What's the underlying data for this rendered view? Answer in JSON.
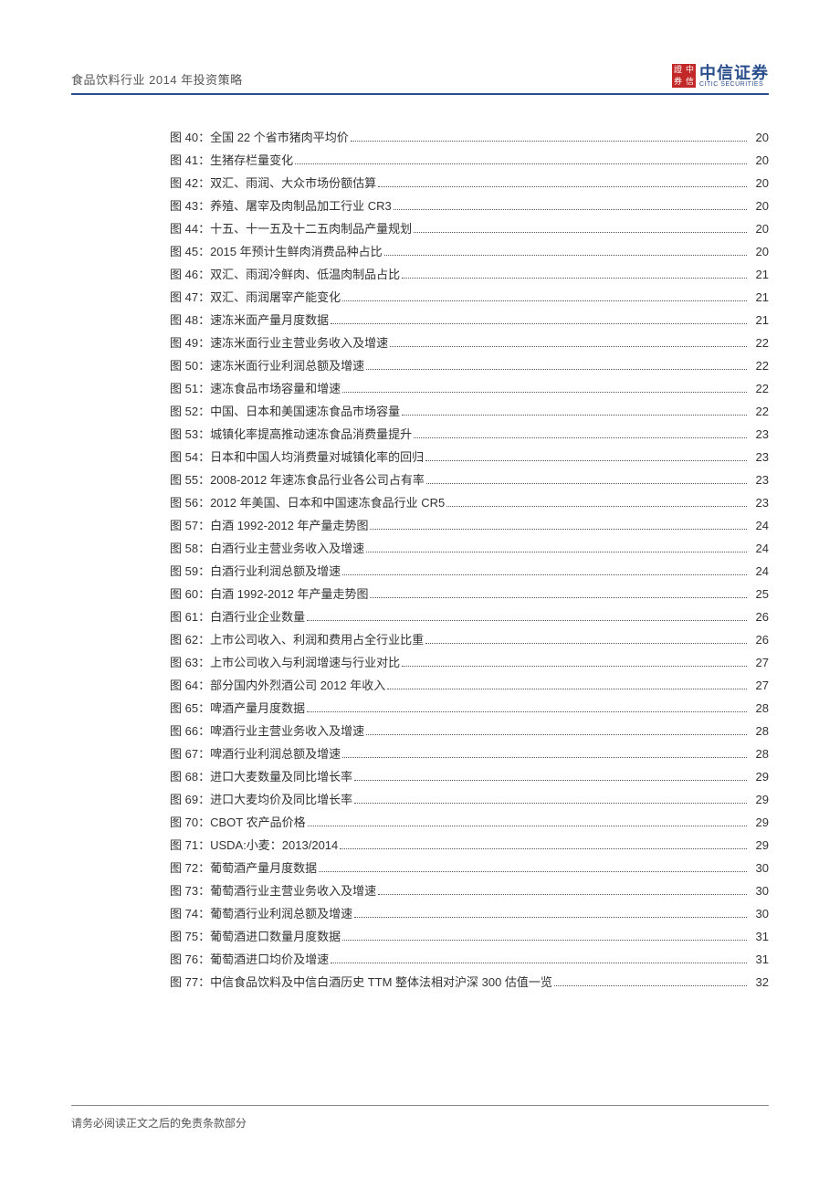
{
  "header": {
    "title": "食品饮料行业 2014 年投资策略",
    "logo": {
      "seal": [
        "證",
        "中",
        "券",
        "信"
      ],
      "cn": "中信证券",
      "en": "CITIC SECURITIES"
    }
  },
  "colors": {
    "accent": "#2a4e8c",
    "seal": "#c32828",
    "text": "#333333",
    "muted": "#555555"
  },
  "toc": [
    {
      "num": "图 40：",
      "title": "全国 22 个省市猪肉平均价",
      "page": "20"
    },
    {
      "num": "图 41：",
      "title": "生猪存栏量变化",
      "page": "20"
    },
    {
      "num": "图 42：",
      "title": "双汇、雨润、大众市场份额估算",
      "page": "20"
    },
    {
      "num": "图 43：",
      "title": "养殖、屠宰及肉制品加工行业 CR3",
      "page": "20"
    },
    {
      "num": "图 44：",
      "title": "十五、十一五及十二五肉制品产量规划",
      "page": "20"
    },
    {
      "num": "图 45：",
      "title": "2015 年预计生鲜肉消费品种占比",
      "page": "20"
    },
    {
      "num": "图 46：",
      "title": "双汇、雨润冷鲜肉、低温肉制品占比",
      "page": "21"
    },
    {
      "num": "图 47：",
      "title": "双汇、雨润屠宰产能变化",
      "page": "21"
    },
    {
      "num": "图 48：",
      "title": "速冻米面产量月度数据",
      "page": "21"
    },
    {
      "num": "图 49：",
      "title": "速冻米面行业主营业务收入及增速",
      "page": "22"
    },
    {
      "num": "图 50：",
      "title": "速冻米面行业利润总额及增速",
      "page": "22"
    },
    {
      "num": "图 51：",
      "title": "速冻食品市场容量和增速",
      "page": "22"
    },
    {
      "num": "图 52：",
      "title": "中国、日本和美国速冻食品市场容量",
      "page": "22"
    },
    {
      "num": "图 53：",
      "title": "城镇化率提高推动速冻食品消费量提升",
      "page": "23"
    },
    {
      "num": "图 54：",
      "title": "日本和中国人均消费量对城镇化率的回归",
      "page": "23"
    },
    {
      "num": "图 55：",
      "title": "2008-2012 年速冻食品行业各公司占有率",
      "page": "23"
    },
    {
      "num": "图 56：",
      "title": "2012 年美国、日本和中国速冻食品行业 CR5",
      "page": "23"
    },
    {
      "num": "图 57：",
      "title": "白酒 1992-2012 年产量走势图",
      "page": "24"
    },
    {
      "num": "图 58：",
      "title": "白酒行业主营业务收入及增速",
      "page": "24"
    },
    {
      "num": "图 59：",
      "title": "白酒行业利润总额及增速",
      "page": "24"
    },
    {
      "num": "图 60：",
      "title": "白酒 1992-2012 年产量走势图",
      "page": "25"
    },
    {
      "num": "图 61：",
      "title": "白酒行业企业数量",
      "page": "26"
    },
    {
      "num": "图 62：",
      "title": "上市公司收入、利润和费用占全行业比重",
      "page": "26"
    },
    {
      "num": "图 63：",
      "title": "上市公司收入与利润增速与行业对比",
      "page": "27"
    },
    {
      "num": "图 64：",
      "title": "部分国内外烈酒公司 2012 年收入",
      "page": "27"
    },
    {
      "num": "图 65：",
      "title": "啤酒产量月度数据",
      "page": "28"
    },
    {
      "num": "图 66：",
      "title": "啤酒行业主营业务收入及增速",
      "page": "28"
    },
    {
      "num": "图 67：",
      "title": "啤酒行业利润总额及增速",
      "page": "28"
    },
    {
      "num": "图 68：",
      "title": "进口大麦数量及同比增长率",
      "page": "29"
    },
    {
      "num": "图 69：",
      "title": "进口大麦均价及同比增长率",
      "page": "29"
    },
    {
      "num": "图 70：",
      "title": "CBOT 农产品价格",
      "page": "29"
    },
    {
      "num": "图 71：",
      "title": "USDA:小麦：2013/2014",
      "page": "29"
    },
    {
      "num": "图 72：",
      "title": "葡萄酒产量月度数据",
      "page": "30"
    },
    {
      "num": "图 73：",
      "title": "葡萄酒行业主营业务收入及增速",
      "page": "30"
    },
    {
      "num": "图 74：",
      "title": "葡萄酒行业利润总额及增速",
      "page": "30"
    },
    {
      "num": "图 75：",
      "title": "葡萄酒进口数量月度数据",
      "page": "31"
    },
    {
      "num": "图 76：",
      "title": "葡萄酒进口均价及增速",
      "page": "31"
    },
    {
      "num": "图 77：",
      "title": "中信食品饮料及中信白酒历史 TTM 整体法相对沪深 300 估值一览",
      "page": "32"
    }
  ],
  "footer": {
    "text": "请务必阅读正文之后的免责条款部分"
  }
}
